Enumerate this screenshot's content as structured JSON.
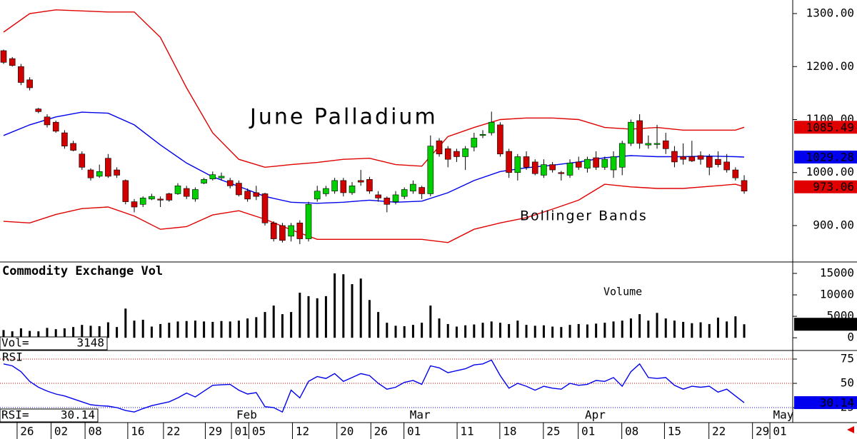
{
  "chart_data": [
    {
      "type": "candlestick",
      "title": "June Palladium",
      "annotation": "Bollinger Bands",
      "up_color": "#00d000",
      "down_color": "#d00000",
      "open": [
        1230,
        1215,
        1200,
        1175,
        1120,
        1105,
        1095,
        1075,
        1055,
        1035,
        1005,
        993,
        1027,
        1005,
        985,
        945,
        940,
        950,
        950,
        960,
        960,
        970,
        950,
        980,
        988,
        990,
        985,
        980,
        965,
        962,
        960,
        905,
        900,
        880,
        905,
        875,
        950,
        960,
        965,
        985,
        962,
        985,
        987,
        958,
        952,
        945,
        955,
        965,
        972,
        960,
        1060,
        1045,
        1040,
        1030,
        1048,
        1070,
        1075,
        1090,
        1040,
        1000,
        1030,
        1020,
        995,
        1015,
        1000,
        995,
        1020,
        1008,
        1028,
        1010,
        1005,
        1010,
        1055,
        1098,
        1052,
        1053,
        1060,
        1040,
        1030,
        1030,
        1032,
        1030,
        1025,
        1020,
        1005,
        985
      ],
      "high": [
        1232,
        1218,
        1205,
        1180,
        1122,
        1110,
        1098,
        1080,
        1060,
        1040,
        1008,
        1015,
        1035,
        1010,
        987,
        950,
        955,
        960,
        955,
        962,
        980,
        975,
        972,
        990,
        1002,
        1000,
        990,
        985,
        970,
        975,
        962,
        908,
        905,
        905,
        910,
        945,
        975,
        975,
        990,
        990,
        982,
        1005,
        992,
        965,
        955,
        965,
        972,
        985,
        975,
        1070,
        1065,
        1050,
        1045,
        1050,
        1075,
        1080,
        1115,
        1095,
        1045,
        1035,
        1040,
        1025,
        1025,
        1020,
        1003,
        1025,
        1030,
        1030,
        1040,
        1030,
        1040,
        1060,
        1100,
        1110,
        1070,
        1090,
        1075,
        1050,
        1055,
        1060,
        1040,
        1035,
        1040,
        1035,
        1010,
        995
      ],
      "low": [
        1205,
        1200,
        1165,
        1155,
        1112,
        1085,
        1075,
        1045,
        1040,
        1005,
        985,
        990,
        990,
        990,
        940,
        925,
        935,
        948,
        935,
        945,
        958,
        950,
        945,
        978,
        985,
        985,
        970,
        955,
        945,
        948,
        900,
        870,
        868,
        870,
        865,
        870,
        945,
        955,
        960,
        955,
        958,
        975,
        960,
        945,
        925,
        940,
        950,
        960,
        950,
        955,
        1030,
        1010,
        1020,
        1005,
        1040,
        1065,
        1070,
        1030,
        990,
        985,
        1005,
        995,
        990,
        1000,
        985,
        990,
        1005,
        1000,
        1005,
        1005,
        990,
        995,
        1050,
        1045,
        1045,
        1045,
        1035,
        1010,
        1015,
        1020,
        1015,
        995,
        1010,
        1000,
        985,
        960
      ],
      "close": [
        1208,
        1202,
        1170,
        1160,
        1115,
        1090,
        1078,
        1050,
        1042,
        1010,
        990,
        1002,
        993,
        995,
        945,
        935,
        952,
        955,
        948,
        948,
        975,
        955,
        968,
        987,
        996,
        993,
        975,
        958,
        950,
        955,
        905,
        875,
        872,
        900,
        875,
        940,
        965,
        970,
        985,
        962,
        975,
        982,
        965,
        952,
        940,
        958,
        968,
        978,
        960,
        1050,
        1035,
        1025,
        1030,
        1045,
        1065,
        1072,
        1095,
        1035,
        1000,
        1030,
        1010,
        998,
        1015,
        1005,
        998,
        1018,
        1010,
        1025,
        1010,
        1025,
        1030,
        1055,
        1095,
        1055,
        1055,
        1055,
        1045,
        1020,
        1025,
        1022,
        1025,
        1010,
        1015,
        1005,
        990,
        965
      ],
      "series": [
        {
          "color": "#e00000",
          "x": [
            0,
            3,
            6,
            9,
            12,
            15,
            18,
            21,
            24,
            27,
            30,
            33,
            36,
            39,
            42,
            45,
            48,
            51,
            54,
            57,
            60,
            63,
            66,
            69,
            72,
            75,
            78,
            81,
            84,
            85
          ],
          "values": [
            1265,
            1300,
            1307,
            1305,
            1303,
            1303,
            1255,
            1160,
            1075,
            1025,
            1010,
            1015,
            1019,
            1025,
            1027,
            1015,
            1012,
            1068,
            1085,
            1100,
            1103,
            1103,
            1100,
            1085,
            1082,
            1085,
            1080,
            1080,
            1080,
            1085.49
          ]
        },
        {
          "color": "#0000ee",
          "x": [
            0,
            3,
            6,
            9,
            12,
            15,
            18,
            21,
            24,
            27,
            30,
            33,
            36,
            39,
            42,
            45,
            48,
            51,
            54,
            57,
            60,
            63,
            66,
            69,
            72,
            75,
            78,
            81,
            84,
            85
          ],
          "values": [
            1070,
            1090,
            1105,
            1114,
            1112,
            1090,
            1052,
            1018,
            992,
            974,
            955,
            944,
            942,
            944,
            948,
            944,
            946,
            962,
            985,
            1002,
            1009,
            1014,
            1020,
            1028,
            1032,
            1030,
            1030,
            1031,
            1030,
            1029.28
          ]
        },
        {
          "color": "#e00000",
          "x": [
            0,
            3,
            6,
            9,
            12,
            15,
            18,
            21,
            24,
            27,
            30,
            33,
            36,
            39,
            42,
            45,
            48,
            51,
            54,
            57,
            60,
            63,
            66,
            69,
            72,
            75,
            78,
            81,
            84,
            85
          ],
          "values": [
            908,
            905,
            921,
            932,
            935,
            918,
            893,
            898,
            920,
            928,
            912,
            892,
            874,
            874,
            874,
            874,
            874,
            868,
            893,
            905,
            915,
            931,
            948,
            978,
            973,
            970,
            970,
            974,
            978,
            973.06
          ]
        }
      ],
      "ylim": [
        831.3,
        1325.6
      ],
      "yticks": [
        {
          "value": 1300,
          "label": "1300.00"
        },
        {
          "value": 1200,
          "label": "1200.00"
        },
        {
          "value": 1100,
          "label": "1100.00"
        },
        {
          "value": 1000,
          "label": "1000.00"
        },
        {
          "value": 900,
          "label": "900.00"
        }
      ]
    },
    {
      "type": "bar",
      "title": "Commodity Exchange Vol",
      "annotation": "Volume",
      "readout_label": "Vol=",
      "color": "#000000",
      "values": [
        1800,
        1500,
        2200,
        1600,
        1500,
        2300,
        2000,
        2200,
        2500,
        3000,
        2800,
        2700,
        3600,
        2500,
        6800,
        4000,
        4200,
        2600,
        3200,
        3500,
        3800,
        3900,
        4000,
        3800,
        3700,
        3900,
        3800,
        4000,
        4500,
        4800,
        6000,
        7500,
        5500,
        6000,
        10500,
        9700,
        9200,
        9700,
        15000,
        14800,
        12500,
        13800,
        8800,
        6000,
        3500,
        2800,
        2700,
        3000,
        3500,
        7500,
        4500,
        3200,
        2600,
        2900,
        3100,
        3500,
        3800,
        3500,
        3200,
        4000,
        3000,
        2800,
        2900,
        2600,
        2500,
        3000,
        3200,
        3100,
        3300,
        3500,
        3800,
        4000,
        4500,
        5500,
        4000,
        5800,
        4500,
        4000,
        3700,
        3400,
        3600,
        3200,
        4700,
        3800,
        5000,
        3148
      ],
      "ylim": [
        -2800,
        17500
      ],
      "yticks": [
        15000,
        10000,
        5000,
        0
      ]
    },
    {
      "type": "line",
      "title": "RSI",
      "readout_label": "RSI=",
      "color": "#0000ee",
      "values": [
        70,
        68,
        62,
        52,
        46,
        42,
        39,
        37,
        34,
        31,
        28,
        27,
        26.5,
        25,
        22,
        20.5,
        24,
        27,
        29,
        31,
        35,
        40,
        36,
        42,
        48,
        48.5,
        49,
        43,
        39,
        40.5,
        26,
        25,
        20.5,
        43,
        35,
        52,
        57,
        55,
        60,
        52,
        56,
        60,
        58,
        50,
        44,
        46,
        51,
        53,
        49,
        68,
        66,
        61,
        63,
        65,
        69,
        70,
        74,
        58,
        45,
        50,
        47,
        43,
        47,
        45,
        44,
        50,
        48,
        49,
        53,
        52,
        56,
        47,
        62,
        70,
        56,
        55,
        56,
        48,
        44,
        47,
        46,
        47,
        41,
        44,
        37,
        30.14
      ],
      "ylim": [
        9.6,
        83.1
      ],
      "yticks": [
        75,
        50,
        25
      ],
      "grid_colors": [
        "#e00000",
        "#e00000",
        "#0000ee"
      ],
      "xlim": [
        -0.41,
        90.57
      ],
      "xticks": [
        {
          "value": 2.7,
          "label": "26"
        },
        {
          "value": 6.6,
          "label": "02"
        },
        {
          "value": 10.5,
          "label": "08"
        },
        {
          "value": 15.4,
          "label": "16"
        },
        {
          "value": 19.5,
          "label": "22"
        },
        {
          "value": 24.3,
          "label": "29"
        },
        {
          "value": 27.3,
          "label": "01"
        },
        {
          "value": 29.3,
          "label": "05"
        },
        {
          "value": 34.3,
          "label": "12"
        },
        {
          "value": 39.4,
          "label": "20"
        },
        {
          "value": 43.3,
          "label": "26"
        },
        {
          "value": 47.1,
          "label": "01"
        },
        {
          "value": 53.2,
          "label": "11"
        },
        {
          "value": 58.1,
          "label": "18"
        },
        {
          "value": 63.1,
          "label": "25"
        },
        {
          "value": 67.1,
          "label": "01"
        },
        {
          "value": 72.1,
          "label": "08"
        },
        {
          "value": 77,
          "label": "15"
        },
        {
          "value": 82.1,
          "label": "22"
        },
        {
          "value": 87.1,
          "label": "29"
        },
        {
          "value": 89.1,
          "label": "01"
        }
      ],
      "months": [
        {
          "value": 27.9,
          "label": "Feb"
        },
        {
          "value": 47.8,
          "label": "Mar"
        },
        {
          "value": 67.9,
          "label": "Apr"
        },
        {
          "value": 89.5,
          "label": "May"
        }
      ]
    }
  ]
}
